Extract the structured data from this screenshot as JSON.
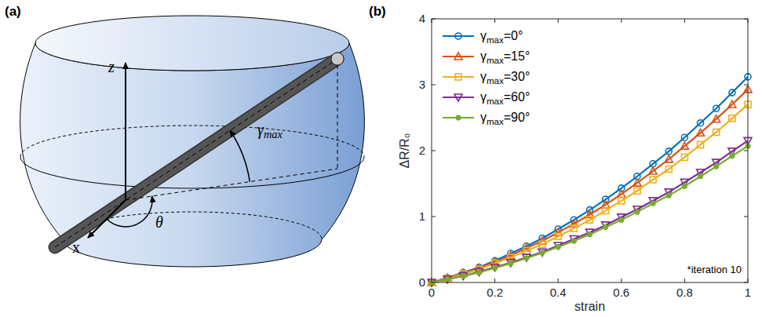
{
  "diagram": {
    "panel_label": "(a)",
    "axis_labels": [
      "z",
      "x"
    ],
    "angle_labels": [
      "θ",
      "γmax"
    ]
  },
  "chart_data": {
    "type": "line",
    "panel_label": "(b)",
    "annotation": "*iteration 10",
    "x_label": "strain",
    "y_label": "ΔR/R₀",
    "x": [
      0,
      0.05,
      0.1,
      0.15,
      0.2,
      0.25,
      0.3,
      0.35,
      0.4,
      0.45,
      0.5,
      0.55,
      0.6,
      0.65,
      0.7,
      0.75,
      0.8,
      0.85,
      0.9,
      0.95,
      1
    ],
    "xlim": [
      0,
      1
    ],
    "xticks": [
      0,
      0.2,
      0.4,
      0.6,
      0.8,
      1
    ],
    "ylim": [
      0,
      4
    ],
    "yticks": [
      0,
      1,
      2,
      3,
      4
    ],
    "grid": false,
    "legend": "upper-left",
    "series": [
      {
        "name": "γmax=0°",
        "color": "#0072bd",
        "marker": "circle",
        "values": [
          0,
          0.07,
          0.15,
          0.23,
          0.33,
          0.44,
          0.55,
          0.67,
          0.81,
          0.95,
          1.1,
          1.26,
          1.43,
          1.61,
          1.8,
          1.99,
          2.2,
          2.42,
          2.64,
          2.88,
          3.12
        ]
      },
      {
        "name": "γmax=15°",
        "color": "#d95319",
        "marker": "triangle",
        "values": [
          0,
          0.07,
          0.14,
          0.22,
          0.31,
          0.41,
          0.52,
          0.63,
          0.76,
          0.89,
          1.03,
          1.18,
          1.34,
          1.51,
          1.69,
          1.87,
          2.07,
          2.27,
          2.48,
          2.7,
          2.93
        ]
      },
      {
        "name": "γmax=30°",
        "color": "#edb120",
        "marker": "square",
        "values": [
          0,
          0.06,
          0.13,
          0.2,
          0.29,
          0.38,
          0.48,
          0.58,
          0.7,
          0.82,
          0.95,
          1.09,
          1.24,
          1.39,
          1.56,
          1.72,
          1.9,
          2.09,
          2.28,
          2.49,
          2.7
        ]
      },
      {
        "name": "γmax=60°",
        "color": "#7e2f8e",
        "marker": "triangle-down",
        "values": [
          0,
          0.05,
          0.1,
          0.16,
          0.23,
          0.3,
          0.38,
          0.46,
          0.56,
          0.66,
          0.76,
          0.87,
          0.99,
          1.11,
          1.24,
          1.37,
          1.52,
          1.67,
          1.82,
          1.99,
          2.15
        ]
      },
      {
        "name": "γmax=90°",
        "color": "#77ac30",
        "marker": "dot",
        "values": [
          0,
          0.05,
          0.1,
          0.15,
          0.22,
          0.29,
          0.37,
          0.45,
          0.54,
          0.63,
          0.73,
          0.84,
          0.95,
          1.07,
          1.2,
          1.32,
          1.46,
          1.61,
          1.76,
          1.92,
          2.07
        ]
      }
    ]
  }
}
